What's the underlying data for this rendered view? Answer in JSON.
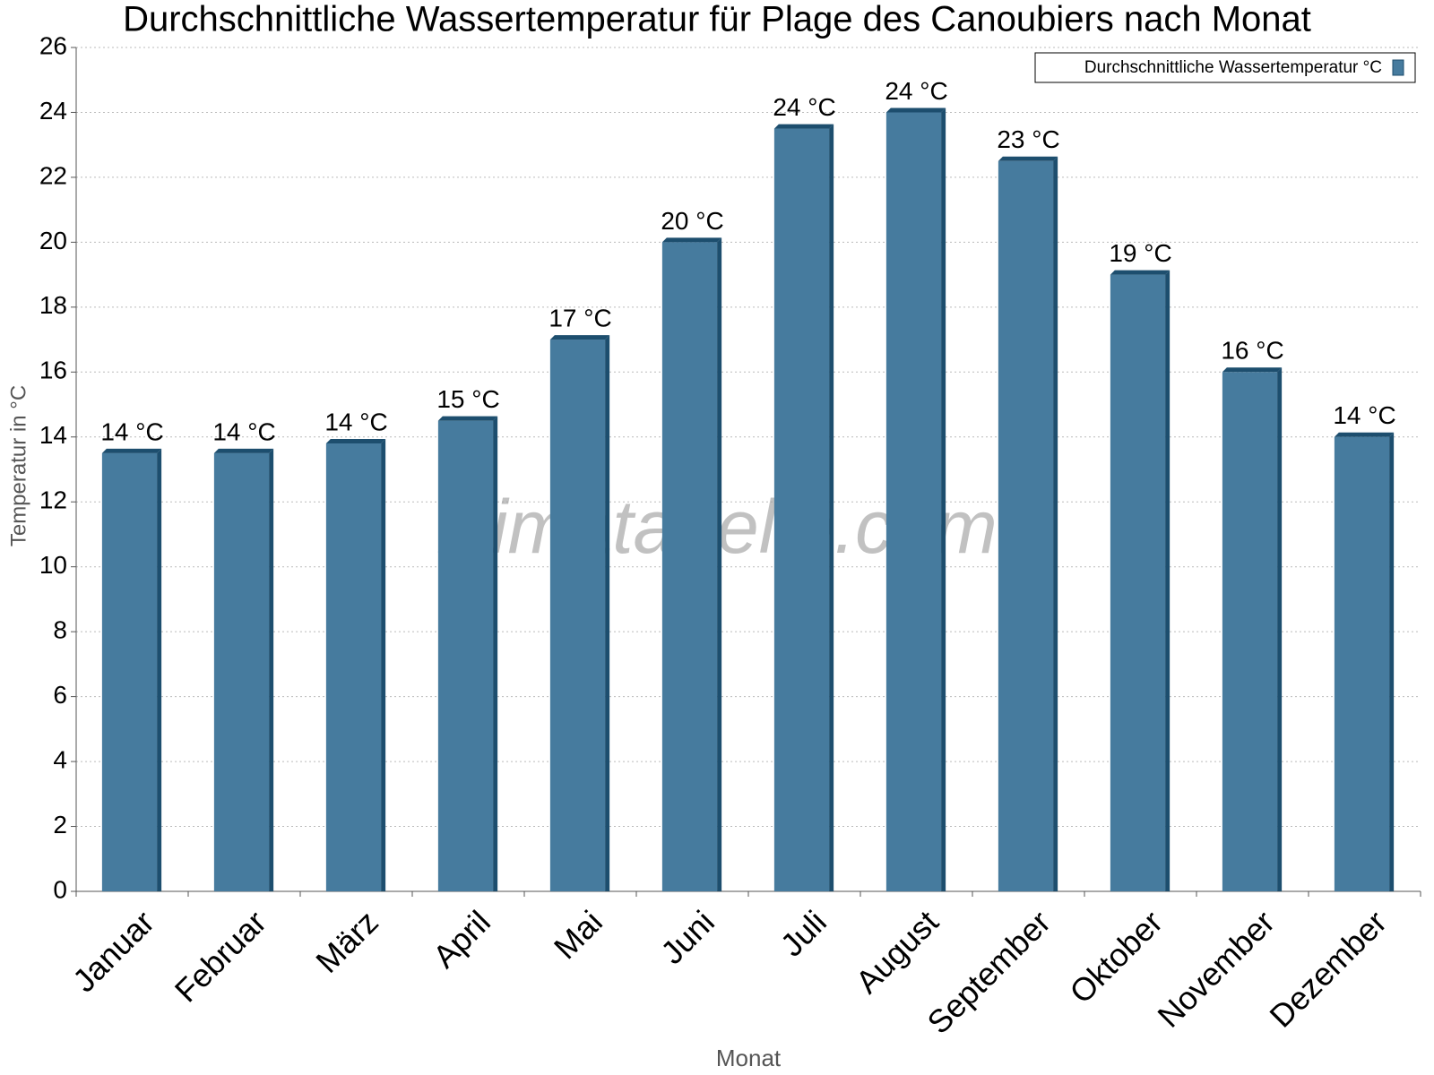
{
  "chart_data": {
    "type": "bar",
    "title": "Durchschnittliche Wassertemperatur für Plage des Canoubiers nach Monat",
    "x_label": "Monat",
    "y_label": "Temperatur in °C",
    "watermark": "klimatabelle.com",
    "categories": [
      "Januar",
      "Februar",
      "März",
      "April",
      "Mai",
      "Juni",
      "Juli",
      "August",
      "September",
      "Oktober",
      "November",
      "Dezember"
    ],
    "series": [
      {
        "name": "Durchschnittliche Wassertemperatur °C",
        "color": "#467b9e",
        "values": [
          13.5,
          13.5,
          13.8,
          14.5,
          17.0,
          20.0,
          23.5,
          24.0,
          22.5,
          19.0,
          16.0,
          14.0
        ],
        "value_labels": [
          "14 °C",
          "14 °C",
          "14 °C",
          "15 °C",
          "17 °C",
          "20 °C",
          "24 °C",
          "24 °C",
          "23 °C",
          "19 °C",
          "16 °C",
          "14 °C"
        ]
      }
    ],
    "ylim": [
      0,
      26
    ],
    "yticks": [
      0,
      2,
      4,
      6,
      8,
      10,
      12,
      14,
      16,
      18,
      20,
      22,
      24,
      26
    ],
    "grid": true,
    "legend": "top-right"
  }
}
